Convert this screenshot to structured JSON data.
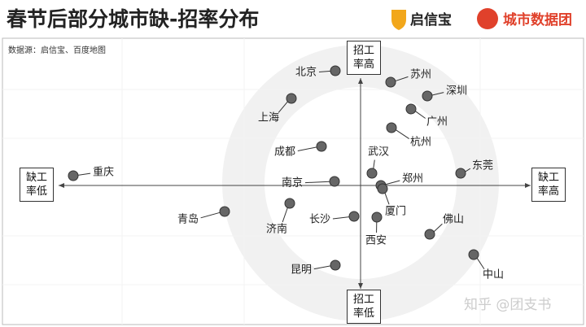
{
  "chart_data": {
    "type": "scatter",
    "title": "春节后部分城市缺-招率分布",
    "source": "数据源：启信宝、百度地图",
    "brands": [
      "启信宝",
      "城市数据团"
    ],
    "watermark": "知乎 @团支书",
    "axis_labels": {
      "top": "招工率高",
      "bottom": "招工率低",
      "left": "缺工率低",
      "right": "缺工率高"
    },
    "xlim": [
      -18.5,
      10.5
    ],
    "ylim": [
      -8.6,
      8
    ],
    "color": "#666666",
    "labels": [
      "北京",
      "苏州",
      "深圳",
      "上海",
      "广州",
      "杭州",
      "成都",
      "武汉",
      "东莞",
      "重庆",
      "南京",
      "郑州",
      "厦门",
      "济南",
      "青岛",
      "长沙",
      "西安",
      "佛山",
      "中山",
      "昆明"
    ],
    "x": [
      -1.55,
      1.85,
      4.1,
      -4.25,
      3.1,
      1.9,
      -2.4,
      0.7,
      6.15,
      -17.65,
      -1.6,
      1.25,
      1.35,
      -4.35,
      -8.35,
      -0.4,
      1.0,
      4.25,
      6.95,
      -1.55
    ],
    "y": [
      7.05,
      6.35,
      5.5,
      5.35,
      4.7,
      3.55,
      2.4,
      0.75,
      0.75,
      0.6,
      0.25,
      0,
      -0.2,
      -1.1,
      -1.6,
      -1.9,
      -1.95,
      -3.0,
      -4.25,
      -4.9
    ]
  }
}
